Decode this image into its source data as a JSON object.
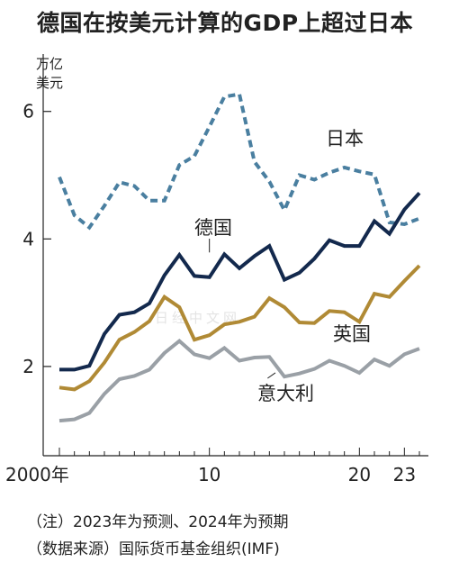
{
  "chart_data": {
    "type": "line",
    "title": "德国在按美元计算的GDP上超过日本",
    "unit_label": [
      "万亿",
      "美元"
    ],
    "ylim": [
      0.6,
      6.9
    ],
    "yticks": [
      2,
      4,
      6
    ],
    "xticks": [
      {
        "value": 2000,
        "label": "2000年"
      },
      {
        "value": 2010,
        "label": "10"
      },
      {
        "value": 2020,
        "label": "20"
      },
      {
        "value": 2023,
        "label": "23"
      }
    ],
    "x": [
      2000,
      2001,
      2002,
      2003,
      2004,
      2005,
      2006,
      2007,
      2008,
      2009,
      2010,
      2011,
      2012,
      2013,
      2014,
      2015,
      2016,
      2017,
      2018,
      2019,
      2020,
      2021,
      2022,
      2023,
      2024
    ],
    "series": [
      {
        "name": "日本",
        "color": "#4a7fa0",
        "dashed": true,
        "values": [
          4.97,
          4.37,
          4.18,
          4.52,
          4.89,
          4.83,
          4.6,
          4.6,
          5.16,
          5.3,
          5.76,
          6.23,
          6.27,
          5.21,
          4.9,
          4.45,
          5.0,
          4.93,
          5.04,
          5.12,
          5.06,
          5.01,
          4.26,
          4.23,
          4.32
        ]
      },
      {
        "name": "德国",
        "color": "#13294d",
        "dashed": false,
        "values": [
          1.95,
          1.95,
          2.01,
          2.51,
          2.81,
          2.85,
          2.99,
          3.43,
          3.75,
          3.42,
          3.4,
          3.76,
          3.54,
          3.73,
          3.89,
          3.36,
          3.47,
          3.69,
          3.98,
          3.89,
          3.89,
          4.28,
          4.08,
          4.46,
          4.72
        ]
      },
      {
        "name": "英国",
        "color": "#b08a35",
        "dashed": false,
        "values": [
          1.67,
          1.64,
          1.77,
          2.06,
          2.42,
          2.54,
          2.71,
          3.09,
          2.93,
          2.42,
          2.49,
          2.66,
          2.7,
          2.78,
          3.07,
          2.93,
          2.69,
          2.68,
          2.87,
          2.85,
          2.7,
          3.14,
          3.09,
          3.34,
          3.58
        ]
      },
      {
        "name": "意大利",
        "color": "#9aa0a6",
        "dashed": false,
        "values": [
          1.15,
          1.17,
          1.27,
          1.57,
          1.8,
          1.85,
          1.95,
          2.21,
          2.4,
          2.19,
          2.13,
          2.29,
          2.09,
          2.14,
          2.15,
          1.84,
          1.89,
          1.96,
          2.09,
          2.01,
          1.9,
          2.11,
          2.01,
          2.19,
          2.28
        ]
      }
    ]
  },
  "watermark": "日经中文网",
  "notes": [
    "（注）2023年为预测、2024年为预期",
    "（数据来源）国际货币基金组织(IMF)"
  ]
}
